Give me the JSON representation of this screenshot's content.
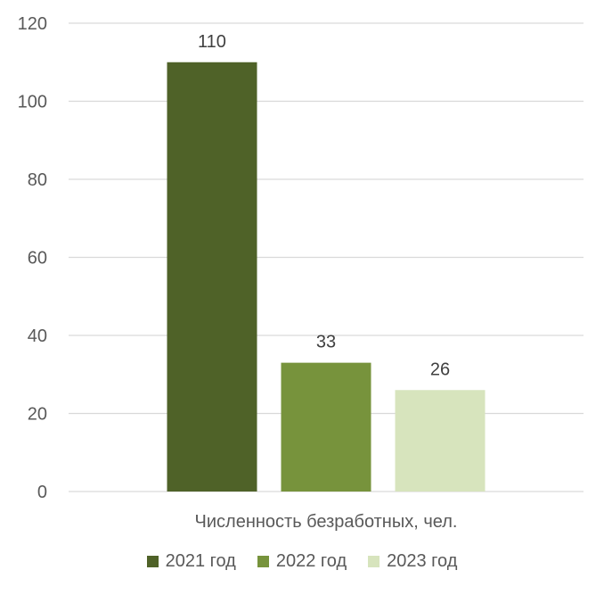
{
  "chart_data": {
    "type": "bar",
    "categories": [
      "Численность безработных, чел."
    ],
    "series": [
      {
        "name": "2021 год",
        "values": [
          110
        ],
        "color": "#4f6228"
      },
      {
        "name": "2022 год",
        "values": [
          33
        ],
        "color": "#77933c"
      },
      {
        "name": "2023 год",
        "values": [
          26
        ],
        "color": "#d7e4bd"
      }
    ],
    "ylim": [
      0,
      120
    ],
    "yticks": [
      0,
      20,
      40,
      60,
      80,
      100,
      120
    ],
    "grid": true,
    "legend_position": "bottom",
    "data_labels": true
  }
}
